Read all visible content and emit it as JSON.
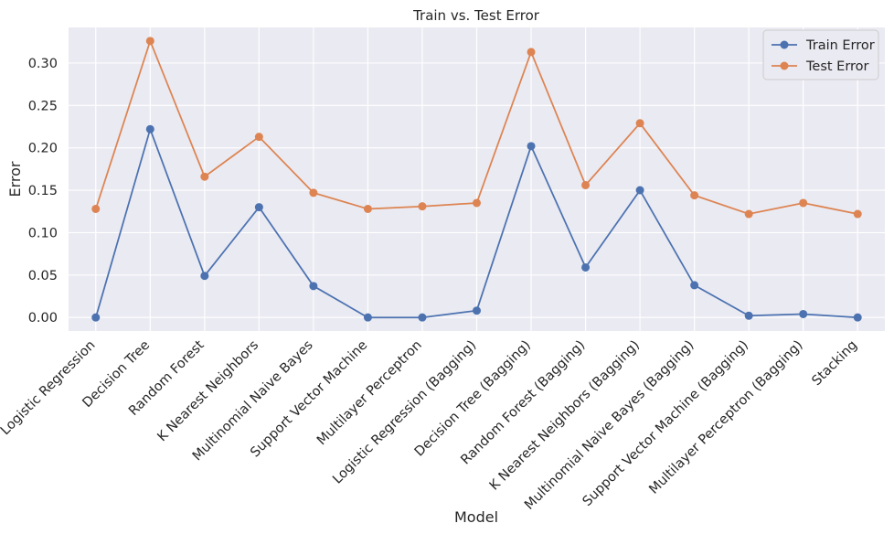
{
  "chart_data": {
    "type": "line",
    "title": "Train vs. Test Error",
    "xlabel": "Model",
    "ylabel": "Error",
    "categories": [
      "Logistic Regression",
      "Decision Tree",
      "Random Forest",
      "K Nearest Neighbors",
      "Multinomial Naive Bayes",
      "Support Vector Machine",
      "Multilayer Perceptron",
      "Logistic Regression (Bagging)",
      "Decision Tree (Bagging)",
      "Random Forest (Bagging)",
      "K Nearest Neighbors (Bagging)",
      "Multinomial Naive Bayes (Bagging)",
      "Support Vector Machine (Bagging)",
      "Multilayer Perceptron (Bagging)",
      "Stacking"
    ],
    "series": [
      {
        "name": "Train Error",
        "color": "#4c72b0",
        "values": [
          0.0,
          0.222,
          0.049,
          0.13,
          0.037,
          0.0,
          0.0,
          0.008,
          0.202,
          0.059,
          0.15,
          0.038,
          0.002,
          0.004,
          0.0
        ]
      },
      {
        "name": "Test Error",
        "color": "#dd8452",
        "values": [
          0.128,
          0.326,
          0.166,
          0.213,
          0.147,
          0.128,
          0.131,
          0.135,
          0.313,
          0.156,
          0.229,
          0.144,
          0.122,
          0.135,
          0.122
        ]
      }
    ],
    "yticks": [
      0.0,
      0.05,
      0.1,
      0.15,
      0.2,
      0.25,
      0.3
    ],
    "ytick_labels": [
      "0.00",
      "0.05",
      "0.10",
      "0.15",
      "0.20",
      "0.25",
      "0.30"
    ],
    "ylim": [
      -0.016,
      0.342
    ],
    "grid": true,
    "legend_position": "top-right",
    "background_color": "#eaeaf2",
    "grid_color": "#ffffff"
  }
}
